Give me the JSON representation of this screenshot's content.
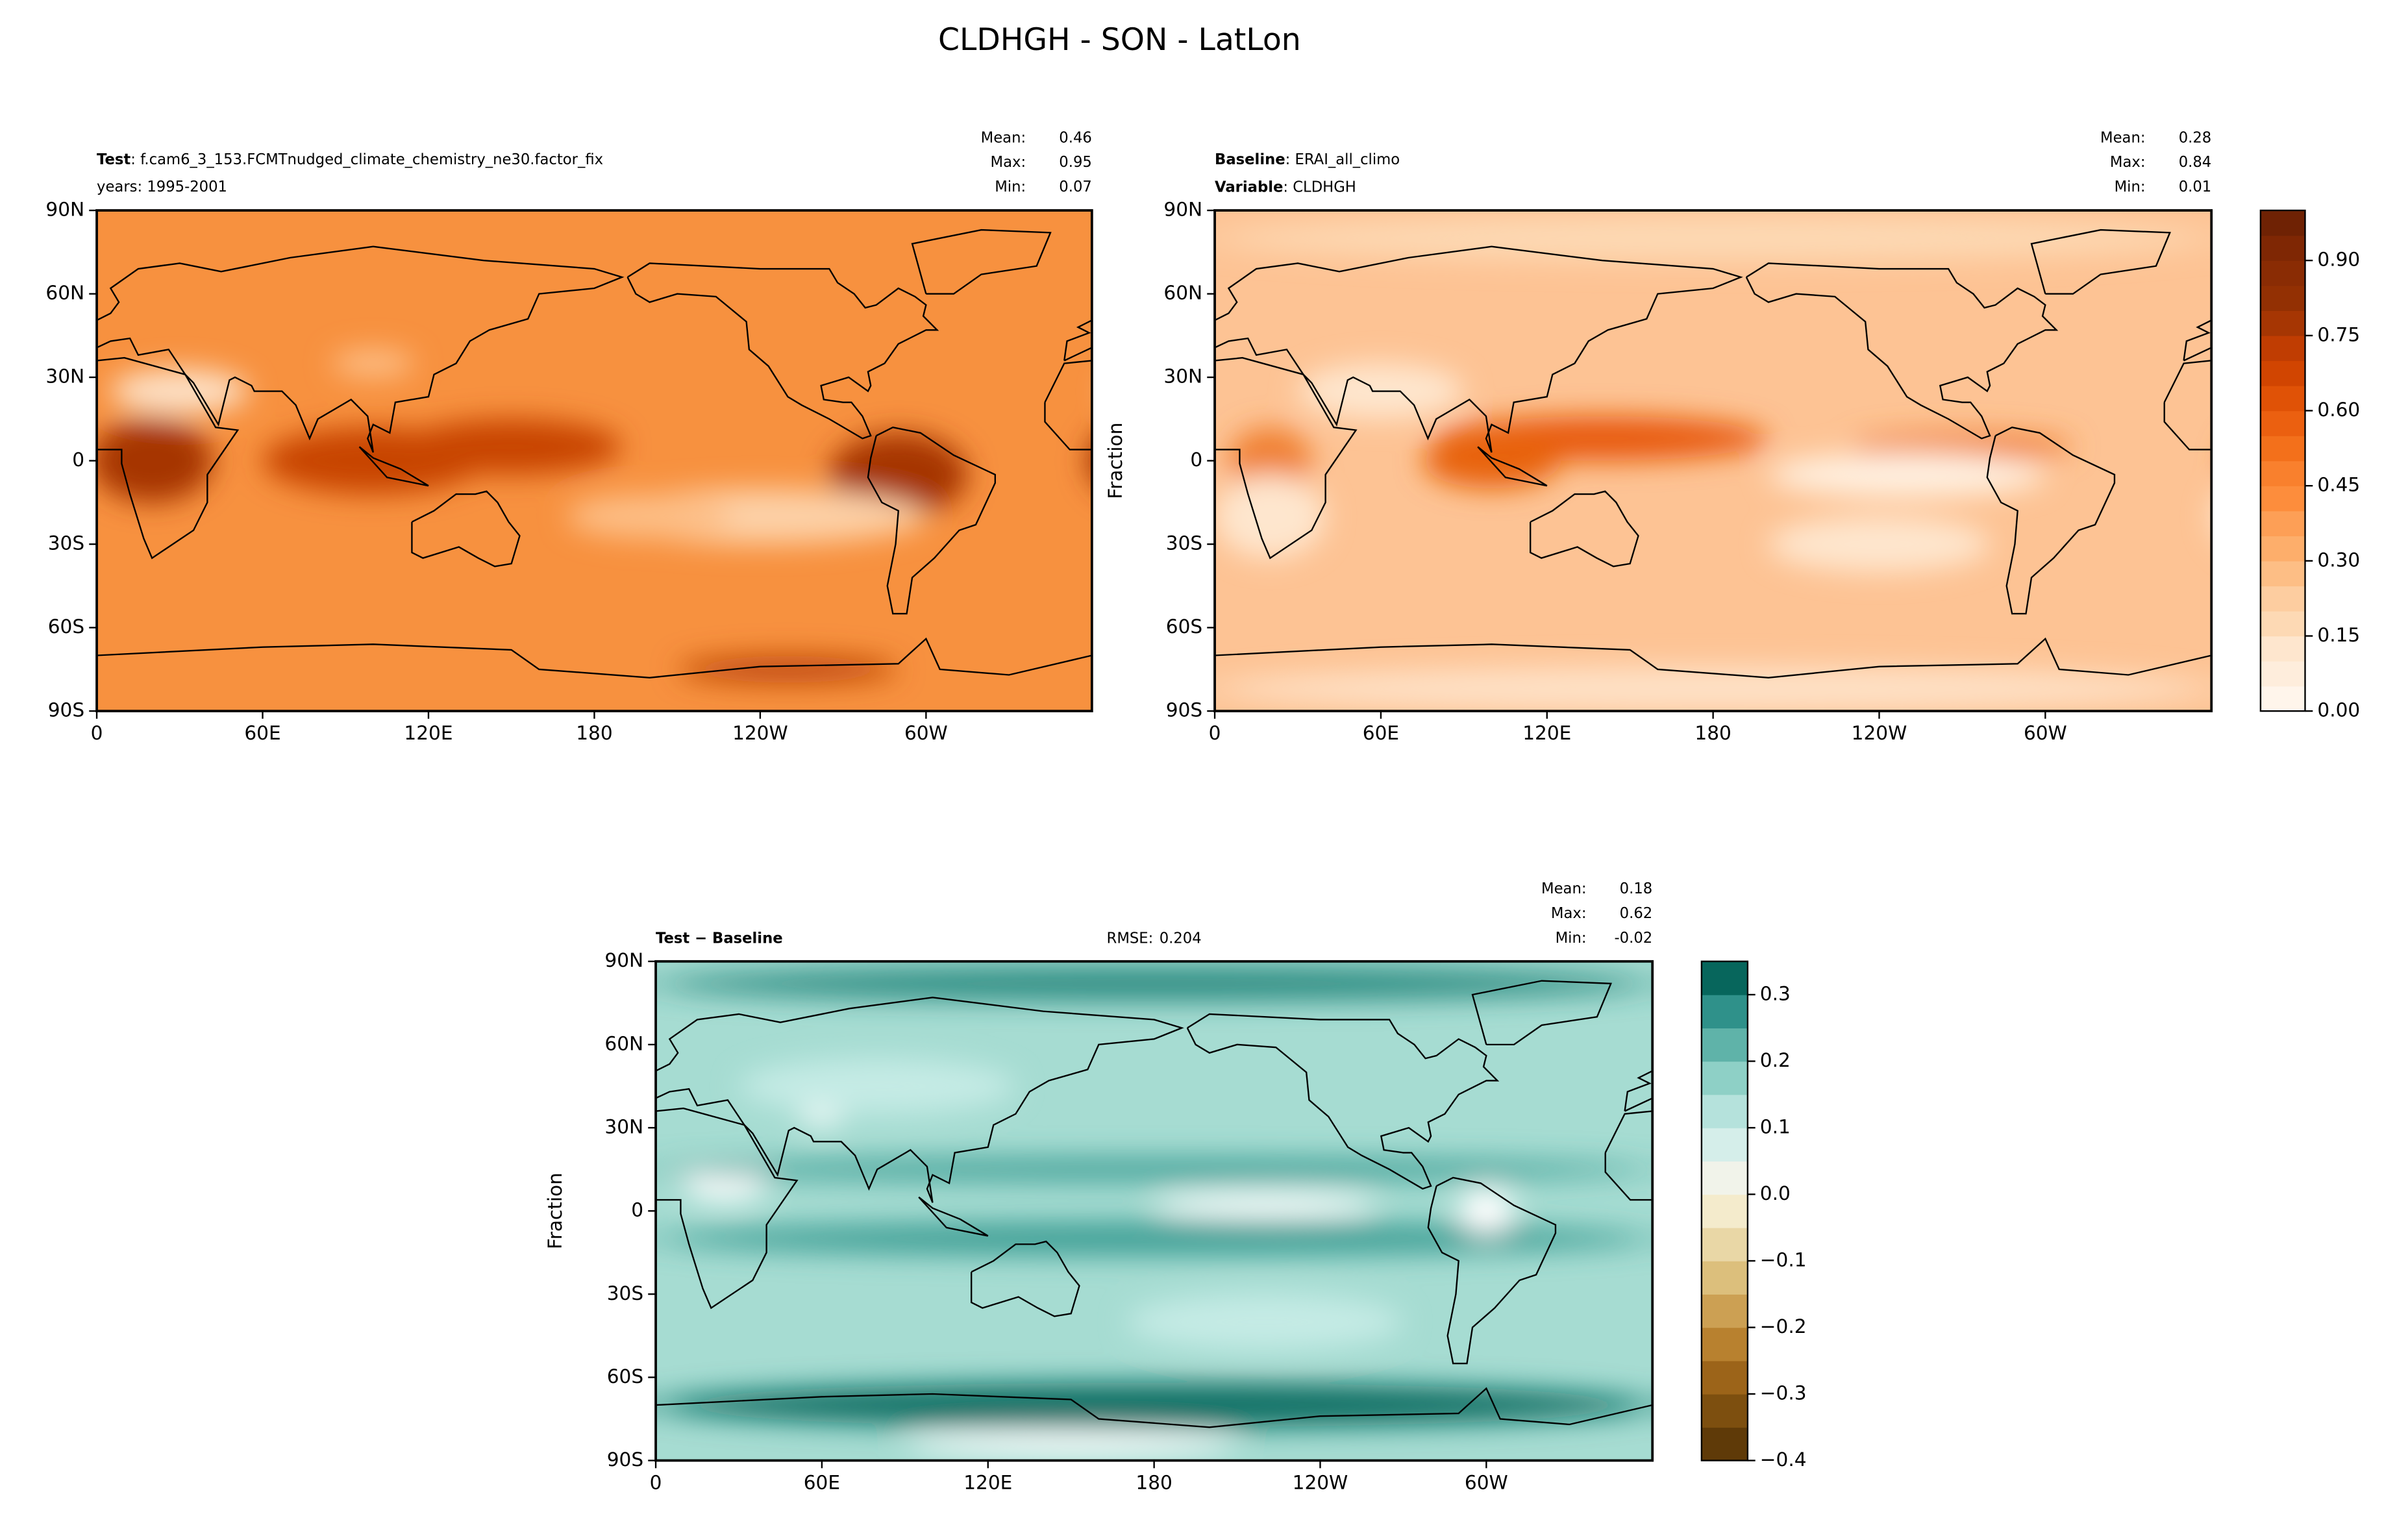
{
  "title": "CLDHGH - SON - LatLon",
  "chart_data": [
    {
      "type": "map",
      "label": "Test",
      "text": ": f.cam6_3_153.FCMTnudged_climate_chemistry_ne30.factor_fix",
      "subtext": "years: 1995-2001",
      "stats": [
        {
          "name": "Mean:",
          "value": 0.46
        },
        {
          "name": "Max:",
          "value": 0.95
        },
        {
          "name": "Min:",
          "value": 0.07
        }
      ],
      "xlim": [
        0,
        360
      ],
      "ylim": [
        -90,
        90
      ],
      "xticks": [
        0,
        {
          "value": 60,
          "label": "60E"
        },
        {
          "value": 120,
          "label": "120E"
        },
        180,
        {
          "value": 240,
          "label": "120W"
        },
        {
          "value": 300,
          "label": "60W"
        }
      ],
      "yticks": [
        {
          "value": 90,
          "label": "90N"
        },
        {
          "value": 60,
          "label": "60N"
        },
        {
          "value": 30,
          "label": "30N"
        },
        0,
        {
          "value": -30,
          "label": "30S"
        },
        {
          "value": -60,
          "label": "60S"
        },
        {
          "value": -90,
          "label": "90S"
        }
      ]
    },
    {
      "type": "map",
      "label": "Baseline",
      "text": ": ERAI_all_climo",
      "label2": "Variable",
      "text2": ": CLDHGH",
      "stats": [
        {
          "name": "Mean:",
          "value": 0.28
        },
        {
          "name": "Max:",
          "value": 0.84
        },
        {
          "name": "Min:",
          "value": 0.01
        }
      ],
      "ylabel": "Fraction",
      "xlim": [
        0,
        360
      ],
      "ylim": [
        -90,
        90
      ],
      "xticks": [
        0,
        {
          "value": 60,
          "label": "60E"
        },
        {
          "value": 120,
          "label": "120E"
        },
        180,
        {
          "value": 240,
          "label": "120W"
        },
        {
          "value": 300,
          "label": "60W"
        }
      ],
      "yticks": [
        {
          "value": 90,
          "label": "90N"
        },
        {
          "value": 60,
          "label": "60N"
        },
        {
          "value": 30,
          "label": "30N"
        },
        0,
        {
          "value": -30,
          "label": "30S"
        },
        {
          "value": -60,
          "label": "60S"
        },
        {
          "value": -90,
          "label": "90S"
        }
      ],
      "colorbar": {
        "lim": [
          0,
          1
        ],
        "ticks": [
          {
            "value": 0,
            "label": "0.00"
          },
          {
            "value": 0.15,
            "label": "0.15"
          },
          {
            "value": 0.3,
            "label": "0.30"
          },
          {
            "value": 0.45,
            "label": "0.45"
          },
          {
            "value": 0.6,
            "label": "0.60"
          },
          {
            "value": 0.75,
            "label": "0.75"
          },
          {
            "value": 0.9,
            "label": "0.90"
          }
        ],
        "colors": [
          "#fff5eb",
          "#feeddc",
          "#fee6ce",
          "#fdd9b4",
          "#fdcda0",
          "#fdbe85",
          "#fdae6b",
          "#fd9f56",
          "#fd8d3c",
          "#f9802d",
          "#f3701b",
          "#eb6010",
          "#e05206",
          "#d14501",
          "#c03d02",
          "#a63603",
          "#933003",
          "#8a2c04",
          "#7f2704",
          "#6f2204"
        ]
      }
    },
    {
      "type": "map",
      "label": "Test − Baseline",
      "rmse_label": "RMSE:",
      "rmse": 0.204,
      "stats": [
        {
          "name": "Mean:",
          "value": 0.18
        },
        {
          "name": "Max:",
          "value": 0.62
        },
        {
          "name": "Min:",
          "value": -0.02
        }
      ],
      "ylabel": "Fraction",
      "xlim": [
        0,
        360
      ],
      "ylim": [
        -90,
        90
      ],
      "xticks": [
        0,
        {
          "value": 60,
          "label": "60E"
        },
        {
          "value": 120,
          "label": "120E"
        },
        180,
        {
          "value": 240,
          "label": "120W"
        },
        {
          "value": 300,
          "label": "60W"
        }
      ],
      "yticks": [
        {
          "value": 90,
          "label": "90N"
        },
        {
          "value": 60,
          "label": "60N"
        },
        {
          "value": 30,
          "label": "30N"
        },
        0,
        {
          "value": -30,
          "label": "30S"
        },
        {
          "value": -60,
          "label": "60S"
        },
        {
          "value": -90,
          "label": "90S"
        }
      ],
      "colorbar": {
        "lim": [
          -0.4,
          0.35
        ],
        "ticks": [
          {
            "value": -0.4,
            "label": "−0.4"
          },
          {
            "value": -0.3,
            "label": "−0.3"
          },
          {
            "value": -0.2,
            "label": "−0.2"
          },
          {
            "value": -0.1,
            "label": "−0.1"
          },
          {
            "value": 0,
            "label": "0.0"
          },
          0.1,
          0.2,
          0.3
        ],
        "colors": [
          "#5f3a08",
          "#7d4f0f",
          "#9c6419",
          "#b8812f",
          "#cca053",
          "#dcbf7c",
          "#e9d7a6",
          "#f4ebcc",
          "#f1f3ea",
          "#d5eeea",
          "#b5e2dc",
          "#8ed0c6",
          "#5fb3a9",
          "#2f918a",
          "#07665c"
        ]
      }
    }
  ]
}
